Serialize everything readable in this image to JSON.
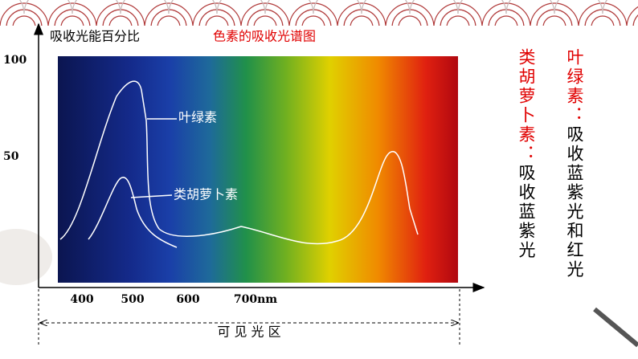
{
  "title": "色素的吸收光谱图",
  "y_axis_label": "吸收光能百分比",
  "y_labels": [
    "100",
    "50"
  ],
  "x_labels": [
    "400",
    "500",
    "600",
    "700nm"
  ],
  "region_label": "可 见 光 区",
  "curves": [
    {
      "label": "叶绿素"
    },
    {
      "label": "类胡萝卜素"
    }
  ],
  "notes": [
    {
      "pigment": "叶绿素：",
      "text": "吸收蓝紫光和红光"
    },
    {
      "pigment": "类胡萝卜素：",
      "text": "吸收蓝紫光"
    }
  ]
}
